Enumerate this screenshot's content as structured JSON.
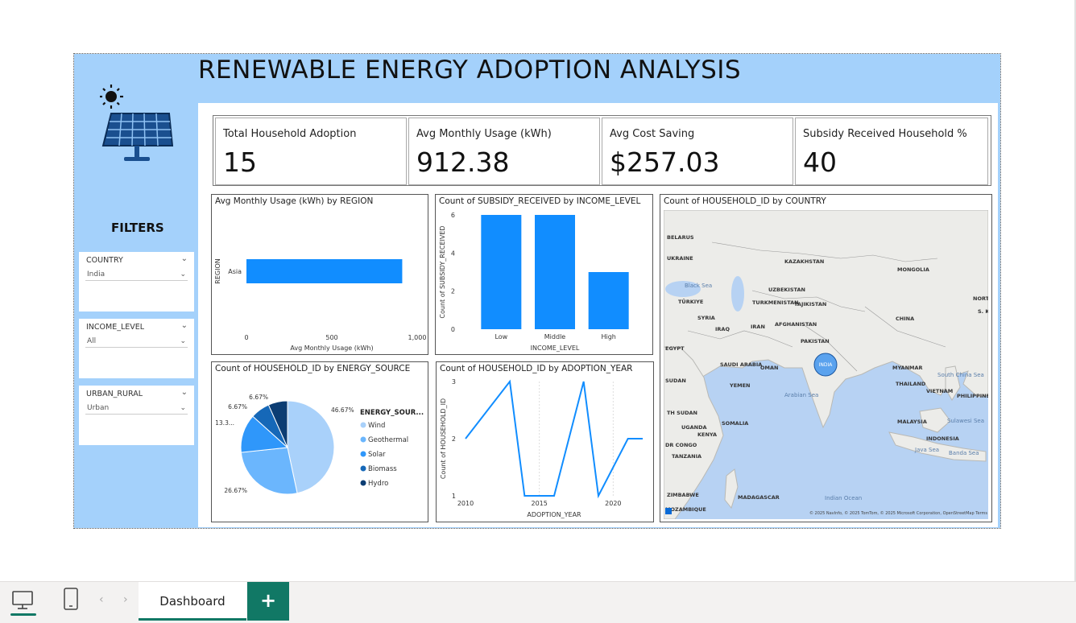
{
  "report": {
    "title": "RENEWABLE ENERGY ADOPTION ANALYSIS",
    "filters_heading": "FILTERS"
  },
  "slicers": [
    {
      "title": "COUNTRY",
      "selected": "India"
    },
    {
      "title": "INCOME_LEVEL",
      "selected": "All"
    },
    {
      "title": "URBAN_RURAL",
      "selected": "Urban"
    }
  ],
  "kpis": [
    {
      "label": "Total Household Adoption",
      "value": "15"
    },
    {
      "label": "Avg Monthly Usage (kWh)",
      "value": "912.38"
    },
    {
      "label": "Avg Cost Saving",
      "value": "$257.03"
    },
    {
      "label": "Subsidy Received Household %",
      "value": "40"
    }
  ],
  "chart_data": [
    {
      "type": "bar",
      "orientation": "horizontal",
      "title": "Avg Monthly Usage (kWh) by REGION",
      "categories": [
        "Asia"
      ],
      "values": [
        912.38
      ],
      "xlabel": "Avg Monthly Usage (kWh)",
      "ylabel": "REGION",
      "xlim": [
        0,
        1000
      ],
      "xticks": [
        "0",
        "500",
        "1,000"
      ],
      "color": "#118dff"
    },
    {
      "type": "bar",
      "title": "Count of SUBSIDY_RECEIVED by INCOME_LEVEL",
      "categories": [
        "Low",
        "Middle",
        "High"
      ],
      "values": [
        6,
        6,
        3
      ],
      "xlabel": "INCOME_LEVEL",
      "ylabel": "Count of SUBSIDY_RECEIVED",
      "ylim": [
        0,
        6
      ],
      "yticks": [
        "0",
        "2",
        "4",
        "6"
      ],
      "color": "#118dff"
    },
    {
      "type": "pie",
      "title": "Count of HOUSEHOLD_ID by ENERGY_SOURCE",
      "legend_title": "ENERGY_SOUR...",
      "labels": [
        "Wind",
        "Geothermal",
        "Solar",
        "Biomass",
        "Hydro"
      ],
      "values": [
        46.67,
        26.67,
        13.33,
        6.67,
        6.67
      ],
      "data_labels": [
        "46.67%",
        "26.67%",
        "13.3...",
        "6.67%",
        "6.67%"
      ],
      "colors": [
        "#a9d1fa",
        "#6bb6fd",
        "#2f97fa",
        "#1668b8",
        "#0c3d73"
      ]
    },
    {
      "type": "line",
      "title": "Count of HOUSEHOLD_ID by ADOPTION_YEAR",
      "x": [
        2010,
        2013,
        2014,
        2016,
        2018,
        2019,
        2021,
        2022
      ],
      "y": [
        2,
        3,
        1,
        1,
        3,
        1,
        2,
        2
      ],
      "xlabel": "ADOPTION_YEAR",
      "ylabel": "Count of HOUSEHOLD_ID",
      "xlim": [
        2010,
        2022
      ],
      "ylim": [
        1,
        3
      ],
      "xticks": [
        "2010",
        "2015",
        "2020"
      ],
      "yticks": [
        "1",
        "2",
        "3"
      ],
      "color": "#118dff"
    }
  ],
  "map": {
    "title": "Count of HOUSEHOLD_ID by COUNTRY",
    "bubble_label": "INDIA",
    "attribution": "© 2025 NavInfo, © 2025 TomTom, © 2025 Microsoft Corporation, OpenStreetMap Terms",
    "place_labels": [
      "KAZAKHSTAN",
      "MONGOLIA",
      "UZBEKISTAN",
      "TURKMENISTAN",
      "TAJIKISTAN",
      "TÜRKIYE",
      "SYRIA",
      "IRAQ",
      "IRAN",
      "AFGHANISTAN",
      "PAKISTAN",
      "CHINA",
      "NORTH KO",
      "S. KORE",
      "EGYPT",
      "SAUDI ARABIA",
      "OMAN",
      "YEMEN",
      "SUDAN",
      "MYANMAR",
      "THAILAND",
      "VIETNAM",
      "PHILIPPINES",
      "MALAYSIA",
      "INDONESIA",
      "SOMALIA",
      "KENYA",
      "UGANDA",
      "TANZANIA",
      "MADAGASCAR",
      "MOZAMBIQUE",
      "ZIMBABWE",
      "Black Sea",
      "Arabian Sea",
      "Indian Ocean",
      "South China Sea",
      "Sulawesi Sea",
      "Java Sea",
      "Banda Sea",
      "UKRAINE",
      "BELARUS",
      "TH SUDAN",
      "DR CONGO"
    ]
  },
  "footer": {
    "tab_label": "Dashboard",
    "add_label": "+"
  }
}
